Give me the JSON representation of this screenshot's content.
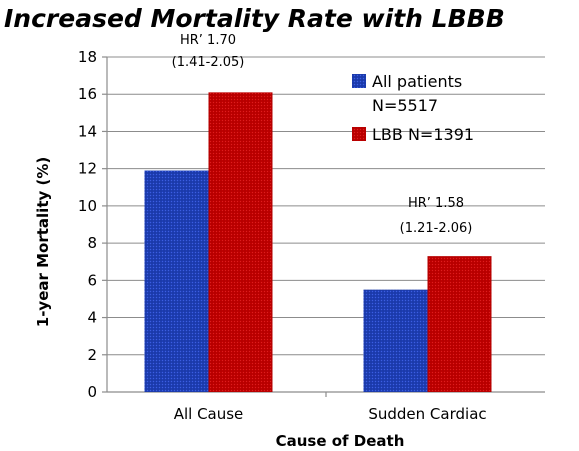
{
  "chart_data": {
    "type": "bar",
    "title": "Increased Mortality Rate with LBBB",
    "xlabel": "Cause of Death",
    "ylabel": "1-year Mortality (%)",
    "ylim": [
      0,
      18
    ],
    "yticks": [
      0,
      2,
      4,
      6,
      8,
      10,
      12,
      14,
      16,
      18
    ],
    "grid": true,
    "legend_position": "top-right",
    "categories": [
      "All Cause",
      "Sudden Cardiac"
    ],
    "series": [
      {
        "name": "All patients N=5517",
        "legend_lines": [
          "All patients",
          "N=5517"
        ],
        "color": "#1f3fb5",
        "values": [
          11.9,
          5.5
        ]
      },
      {
        "name": "LBB N=1391",
        "legend_lines": [
          "LBB N=1391"
        ],
        "color": "#c00000",
        "values": [
          16.1,
          7.3
        ]
      }
    ],
    "annotations": [
      {
        "category": "All Cause",
        "lines": [
          "HR’ 1.70",
          "(1.41-2.05)"
        ]
      },
      {
        "category": "Sudden Cardiac",
        "lines": [
          "HR’ 1.58",
          "(1.21-2.06)"
        ]
      }
    ]
  }
}
